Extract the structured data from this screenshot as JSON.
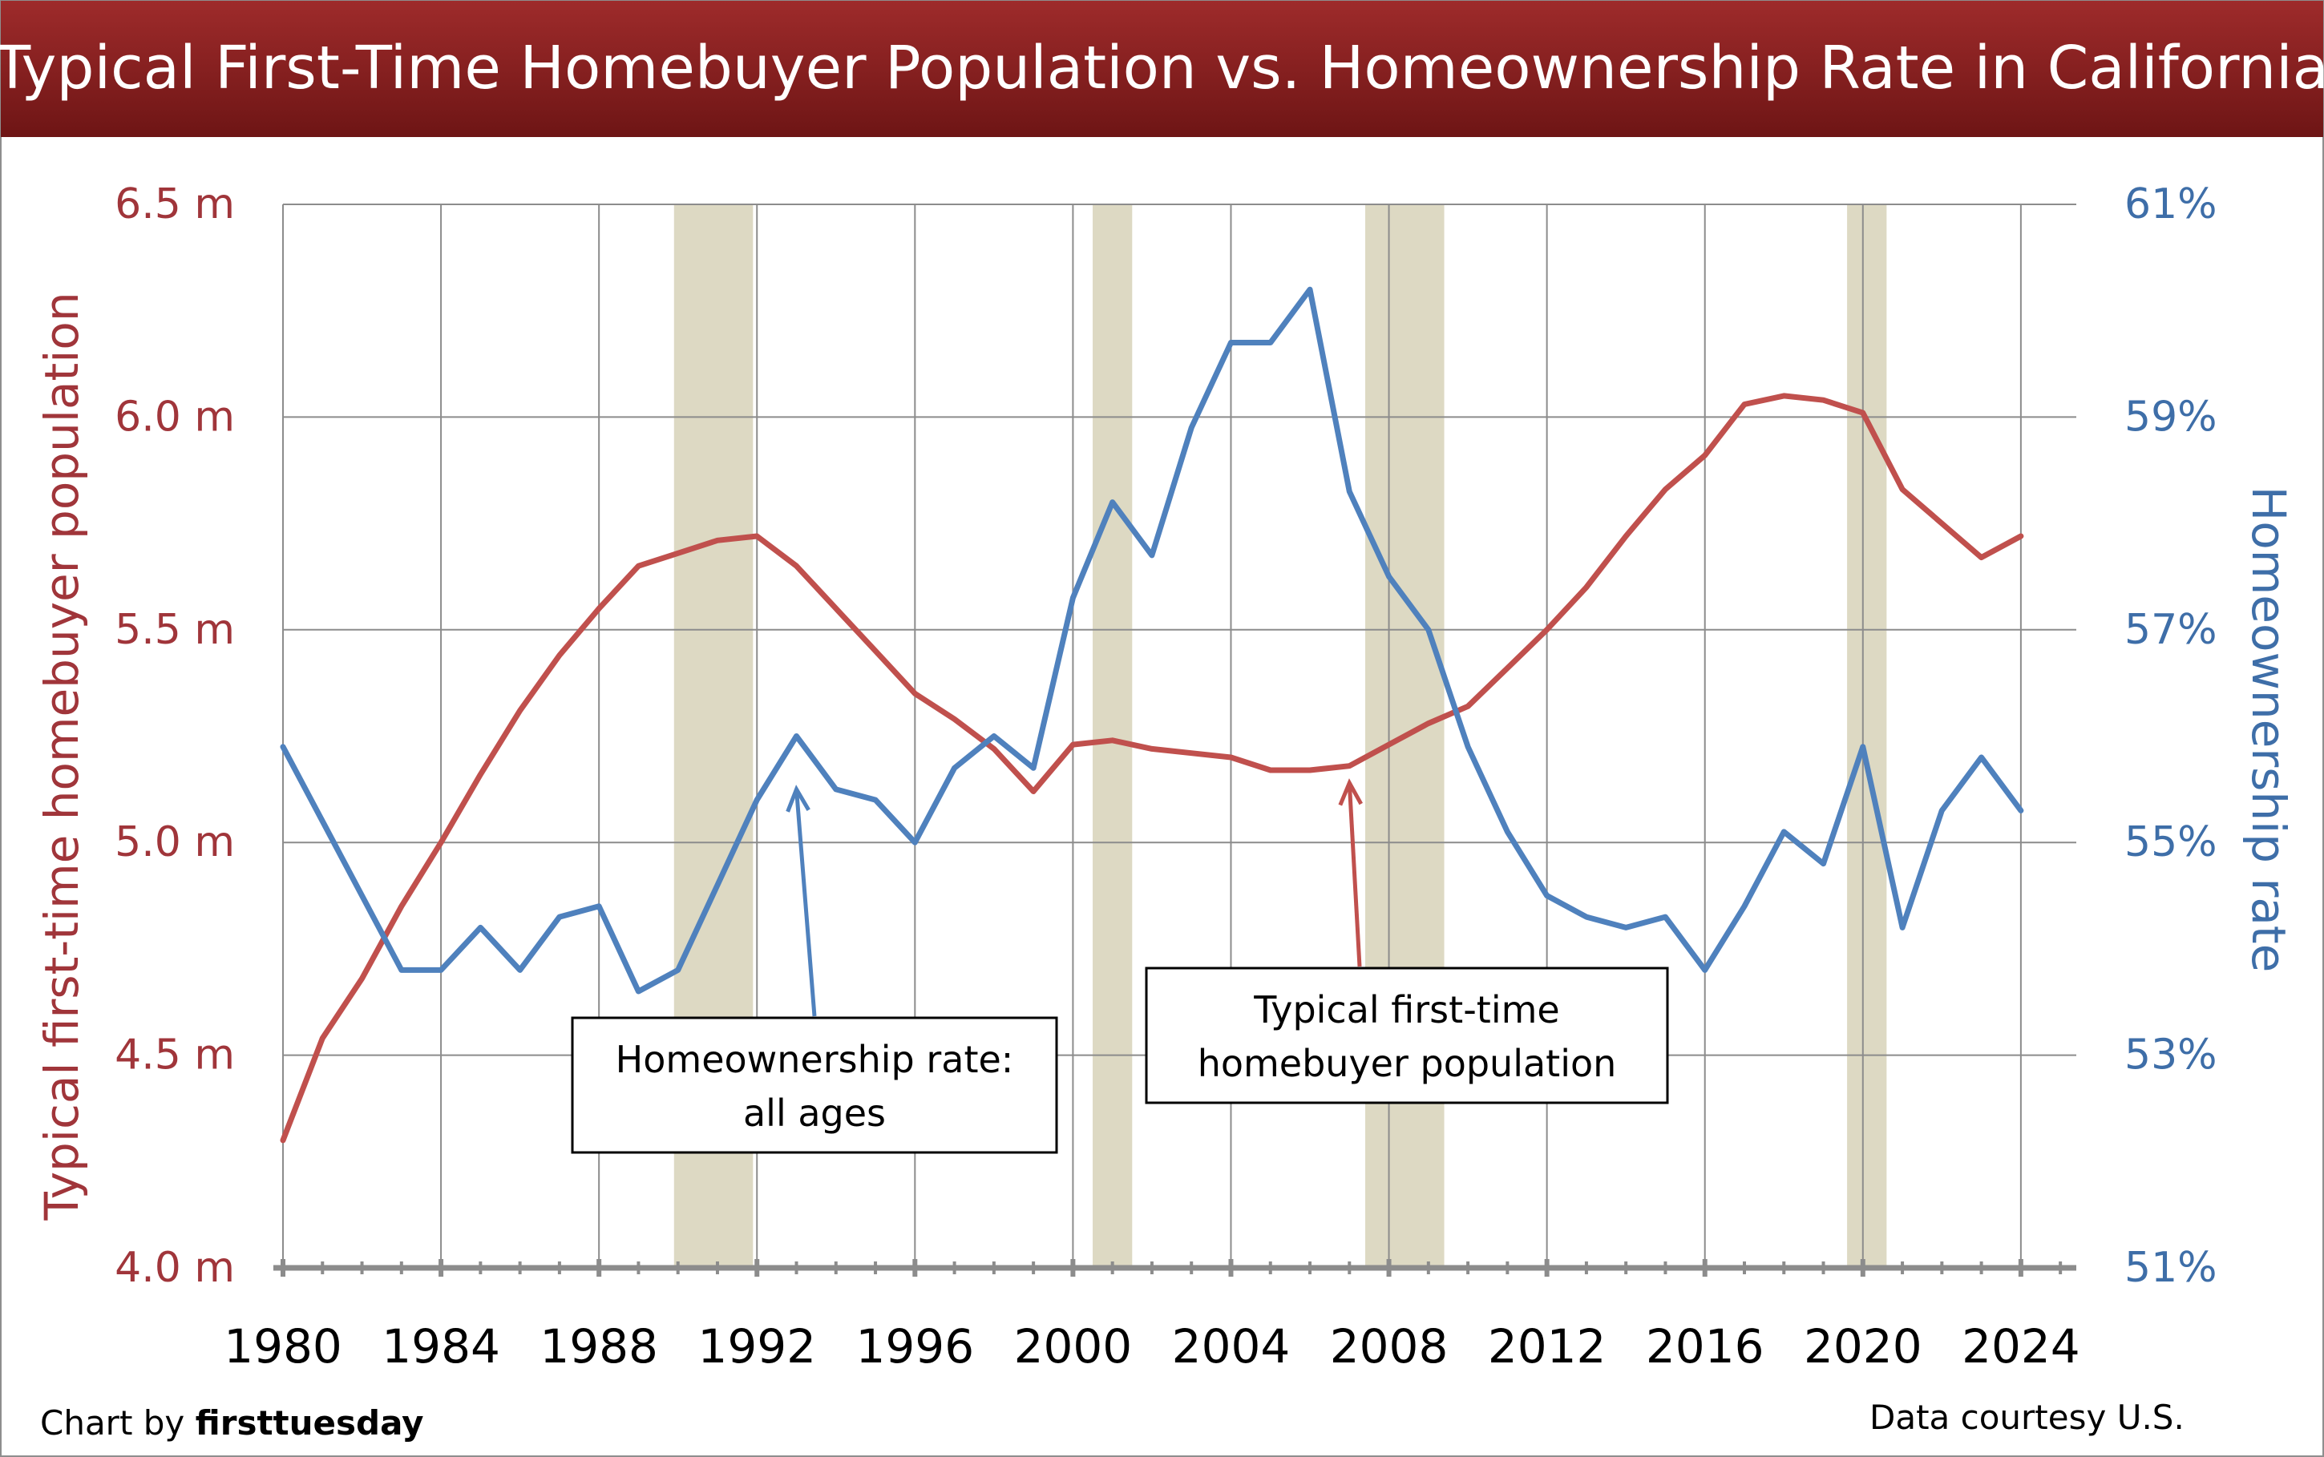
{
  "chart_data": {
    "type": "line",
    "title": "Typical First-Time Homebuyer Population vs. Homeownership Rate in California",
    "xlabel": "",
    "x_ticks": [
      "1980",
      "1984",
      "1988",
      "1992",
      "1996",
      "2000",
      "2004",
      "2008",
      "2012",
      "2016",
      "2020",
      "2024"
    ],
    "xlim": [
      1980,
      2025.4
    ],
    "y_left": {
      "label": "Typical first-time homebuyer population",
      "lim": [
        4.0,
        6.5
      ],
      "ticks": [
        "4.0 m",
        "4.5 m",
        "5.0 m",
        "5.5 m",
        "6.0 m",
        "6.5 m"
      ],
      "color": "#C0504D"
    },
    "y_right": {
      "label": "Homeownership rate",
      "lim": [
        51,
        61
      ],
      "ticks": [
        "51%",
        "53%",
        "55%",
        "57%",
        "59%",
        "61%"
      ],
      "color": "#4F81BD"
    },
    "recession_bands": [
      [
        1989.9,
        1991.9
      ],
      [
        2000.5,
        2001.5
      ],
      [
        2007.4,
        2009.4
      ],
      [
        2019.6,
        2020.6
      ]
    ],
    "band_color": "#DDD9C3",
    "grid": true,
    "legend": "none",
    "series": [
      {
        "name": "Typical first-time homebuyer population",
        "axis": "left",
        "color": "#C0504D",
        "x": [
          1980,
          1981,
          1982,
          1983,
          1984,
          1985,
          1986,
          1987,
          1988,
          1989,
          1990,
          1991,
          1992,
          1993,
          1994,
          1995,
          1996,
          1997,
          1998,
          1999,
          2000,
          2001,
          2002,
          2003,
          2004,
          2005,
          2006,
          2007,
          2008,
          2009,
          2010,
          2011,
          2012,
          2013,
          2014,
          2015,
          2016,
          2017,
          2018,
          2019,
          2020,
          2021,
          2022,
          2023,
          2024
        ],
        "values": [
          4.3,
          4.54,
          4.68,
          4.85,
          5.0,
          5.16,
          5.31,
          5.44,
          5.55,
          5.65,
          5.68,
          5.71,
          5.72,
          5.65,
          5.55,
          5.45,
          5.35,
          5.29,
          5.22,
          5.12,
          5.23,
          5.24,
          5.22,
          5.21,
          5.2,
          5.17,
          5.17,
          5.18,
          5.23,
          5.28,
          5.32,
          5.41,
          5.5,
          5.6,
          5.72,
          5.83,
          5.91,
          6.03,
          6.05,
          6.04,
          6.01,
          5.83,
          5.75,
          5.67,
          5.72
        ]
      },
      {
        "name": "Homeownership rate",
        "axis": "right",
        "color": "#4F81BD",
        "x": [
          1980,
          1981,
          1982,
          1983,
          1984,
          1985,
          1986,
          1987,
          1988,
          1989,
          1990,
          1991,
          1992,
          1993,
          1994,
          1995,
          1996,
          1997,
          1998,
          1999,
          2000,
          2001,
          2002,
          2003,
          2004,
          2005,
          2006,
          2007,
          2008,
          2009,
          2010,
          2011,
          2012,
          2013,
          2014,
          2015,
          2016,
          2017,
          2018,
          2019,
          2020,
          2021,
          2022,
          2023,
          2024
        ],
        "values": [
          55.9,
          55.2,
          54.5,
          53.8,
          53.8,
          54.2,
          53.8,
          54.3,
          54.4,
          53.6,
          53.8,
          54.6,
          55.4,
          56.0,
          55.5,
          55.4,
          55.0,
          55.7,
          56.0,
          55.7,
          57.3,
          58.2,
          57.7,
          58.9,
          59.7,
          59.7,
          60.2,
          58.3,
          57.5,
          57.0,
          55.9,
          55.1,
          54.5,
          54.3,
          54.2,
          54.3,
          53.8,
          54.4,
          55.1,
          54.8,
          55.9,
          54.2,
          55.3,
          55.8,
          55.3
        ]
      }
    ],
    "annotations": [
      {
        "lines": [
          "Homeownership rate:",
          "all ages"
        ],
        "points_to": "Homeownership rate",
        "arrow_x": 1993,
        "arrow_y": 55.5
      },
      {
        "lines": [
          "Typical first-time",
          "homebuyer population"
        ],
        "points_to": "Typical first-time homebuyer population",
        "arrow_x": 2007,
        "arrow_y": 5.14
      }
    ]
  },
  "footer": {
    "credit_prefix": "Chart by ",
    "credit_brand": "firsttuesday",
    "source": "Data courtesy U.S."
  }
}
